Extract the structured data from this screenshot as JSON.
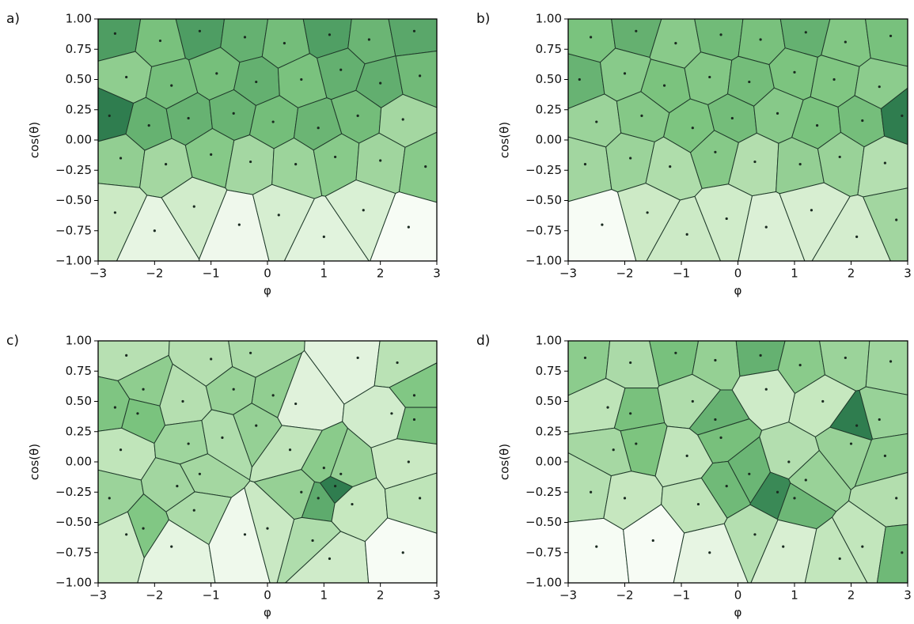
{
  "chart_data": [
    {
      "type": "voronoi",
      "panel_label": "a)",
      "xlabel": "φ",
      "ylabel": "cos(θ)",
      "x": [
        -2.7,
        -1.9,
        -1.2,
        -0.4,
        0.3,
        1.1,
        1.8,
        2.6,
        -2.5,
        -1.7,
        -0.9,
        -0.2,
        0.6,
        1.3,
        2.0,
        2.7,
        -2.8,
        -2.1,
        -1.4,
        -0.6,
        0.1,
        0.9,
        1.6,
        2.4,
        -2.6,
        -1.8,
        -1.0,
        -0.3,
        0.5,
        1.2,
        2.0,
        2.8,
        -2.7,
        -2.0,
        -1.3,
        -0.5,
        0.2,
        1.0,
        1.7,
        2.5
      ],
      "y": [
        0.88,
        0.82,
        0.9,
        0.85,
        0.8,
        0.87,
        0.83,
        0.9,
        0.52,
        0.45,
        0.55,
        0.48,
        0.5,
        0.58,
        0.47,
        0.53,
        0.2,
        0.12,
        0.18,
        0.22,
        0.15,
        0.1,
        0.2,
        0.17,
        -0.15,
        -0.2,
        -0.12,
        -0.18,
        -0.2,
        -0.14,
        -0.17,
        -0.22,
        -0.6,
        -0.75,
        -0.55,
        -0.7,
        -0.62,
        -0.8,
        -0.58,
        -0.72
      ],
      "xlim": [
        -3,
        3
      ],
      "ylim": [
        -1,
        1
      ],
      "xticks": [
        {
          "value": -3,
          "label": "−3"
        },
        {
          "value": -2,
          "label": "−2"
        },
        {
          "value": -1,
          "label": "−1"
        },
        0,
        1,
        2,
        3
      ],
      "yticks": [
        {
          "value": 1,
          "label": "1.00"
        },
        {
          "value": 0.75,
          "label": "0.75"
        },
        {
          "value": 0.5,
          "label": "0.50"
        },
        {
          "value": 0.25,
          "label": "0.25"
        },
        {
          "value": 0,
          "label": "0.00"
        },
        {
          "value": -0.25,
          "label": "−0.25"
        },
        {
          "value": -0.5,
          "label": "−0.50"
        },
        {
          "value": -0.75,
          "label": "−0.75"
        },
        {
          "value": -1,
          "label": "−1.00"
        }
      ],
      "cmap": [
        "#2f7d4f",
        "#4f9e63",
        "#7cc47f",
        "#c7e8c0",
        "#f7fcf5"
      ]
    },
    {
      "type": "voronoi",
      "panel_label": "b)",
      "xlabel": "φ",
      "ylabel": "cos(θ)",
      "x": [
        -2.6,
        -1.8,
        -1.1,
        -0.3,
        0.4,
        1.2,
        1.9,
        2.7,
        -2.8,
        -2.0,
        -1.3,
        -0.5,
        0.2,
        1.0,
        1.7,
        2.5,
        -2.5,
        -1.7,
        -0.8,
        -0.1,
        0.7,
        1.4,
        2.2,
        2.9,
        -2.7,
        -1.9,
        -1.2,
        -0.4,
        0.3,
        1.1,
        1.8,
        2.6,
        -2.4,
        -1.6,
        -0.9,
        -0.2,
        0.5,
        1.3,
        2.1,
        2.8
      ],
      "y": [
        0.85,
        0.9,
        0.8,
        0.87,
        0.83,
        0.89,
        0.81,
        0.86,
        0.5,
        0.55,
        0.45,
        0.52,
        0.48,
        0.56,
        0.5,
        0.44,
        0.15,
        0.2,
        0.1,
        0.18,
        0.22,
        0.12,
        0.16,
        0.2,
        -0.2,
        -0.15,
        -0.22,
        -0.1,
        -0.18,
        -0.2,
        -0.14,
        -0.19,
        -0.7,
        -0.6,
        -0.78,
        -0.65,
        -0.72,
        -0.58,
        -0.8,
        -0.66
      ],
      "xlim": [
        -3,
        3
      ],
      "ylim": [
        -1,
        1
      ],
      "xticks": [
        {
          "value": -3,
          "label": "−3"
        },
        {
          "value": -2,
          "label": "−2"
        },
        {
          "value": -1,
          "label": "−1"
        },
        0,
        1,
        2,
        3
      ],
      "yticks": [
        {
          "value": 1,
          "label": "1.00"
        },
        {
          "value": 0.75,
          "label": "0.75"
        },
        {
          "value": 0.5,
          "label": "0.50"
        },
        {
          "value": 0.25,
          "label": "0.25"
        },
        {
          "value": 0,
          "label": "0.00"
        },
        {
          "value": -0.25,
          "label": "−0.25"
        },
        {
          "value": -0.5,
          "label": "−0.50"
        },
        {
          "value": -0.75,
          "label": "−0.75"
        },
        {
          "value": -1,
          "label": "−1.00"
        }
      ],
      "cmap": [
        "#2f7d4f",
        "#4f9e63",
        "#7cc47f",
        "#c7e8c0",
        "#f7fcf5"
      ]
    },
    {
      "type": "voronoi",
      "panel_label": "c)",
      "xlabel": "φ",
      "ylabel": "cos(θ)",
      "x": [
        -2.5,
        -2.2,
        -1.0,
        -0.3,
        0.1,
        1.6,
        2.3,
        2.6,
        -2.7,
        -2.3,
        -1.5,
        -0.6,
        -0.2,
        0.5,
        2.2,
        2.6,
        -2.6,
        -1.4,
        -1.2,
        -0.8,
        0.4,
        1.0,
        1.3,
        2.5,
        -2.8,
        -1.6,
        -1.3,
        0.6,
        0.9,
        1.2,
        1.5,
        2.7,
        -2.5,
        -2.2,
        -1.7,
        -0.4,
        0.0,
        0.8,
        1.1,
        2.4
      ],
      "y": [
        0.88,
        0.6,
        0.85,
        0.9,
        0.55,
        0.86,
        0.82,
        0.55,
        0.45,
        0.4,
        0.5,
        0.6,
        0.3,
        0.48,
        0.4,
        0.35,
        0.1,
        0.15,
        -0.1,
        0.2,
        0.1,
        -0.05,
        -0.1,
        0.0,
        -0.3,
        -0.2,
        -0.4,
        -0.25,
        -0.3,
        -0.2,
        -0.35,
        -0.3,
        -0.6,
        -0.55,
        -0.7,
        -0.6,
        -0.55,
        -0.65,
        -0.8,
        -0.75
      ],
      "xlim": [
        -3,
        3
      ],
      "ylim": [
        -1,
        1
      ],
      "xticks": [
        {
          "value": -3,
          "label": "−3"
        },
        {
          "value": -2,
          "label": "−2"
        },
        {
          "value": -1,
          "label": "−1"
        },
        0,
        1,
        2,
        3
      ],
      "yticks": [
        {
          "value": 1,
          "label": "1.00"
        },
        {
          "value": 0.75,
          "label": "0.75"
        },
        {
          "value": 0.5,
          "label": "0.50"
        },
        {
          "value": 0.25,
          "label": "0.25"
        },
        {
          "value": 0,
          "label": "0.00"
        },
        {
          "value": -0.25,
          "label": "−0.25"
        },
        {
          "value": -0.5,
          "label": "−0.50"
        },
        {
          "value": -0.75,
          "label": "−0.75"
        },
        {
          "value": -1,
          "label": "−1.00"
        }
      ],
      "cmap": [
        "#2f7d4f",
        "#4f9e63",
        "#7cc47f",
        "#c7e8c0",
        "#f7fcf5"
      ]
    },
    {
      "type": "voronoi",
      "panel_label": "d)",
      "xlabel": "φ",
      "ylabel": "cos(θ)",
      "x": [
        -2.7,
        -1.9,
        -1.1,
        -0.4,
        0.4,
        1.1,
        1.9,
        2.7,
        -2.3,
        -1.9,
        -0.8,
        -0.4,
        0.5,
        1.5,
        2.1,
        2.5,
        -2.2,
        -1.8,
        -0.9,
        -0.3,
        0.2,
        0.9,
        2.0,
        2.6,
        -2.6,
        -2.0,
        -0.7,
        -0.2,
        0.7,
        1.0,
        1.2,
        2.8,
        -2.5,
        -1.5,
        -0.5,
        0.3,
        0.8,
        1.8,
        2.2,
        2.9
      ],
      "y": [
        0.86,
        0.82,
        0.9,
        0.84,
        0.88,
        0.8,
        0.86,
        0.83,
        0.45,
        0.4,
        0.5,
        0.35,
        0.6,
        0.5,
        0.3,
        0.35,
        0.1,
        0.15,
        0.05,
        0.2,
        -0.1,
        0.0,
        0.15,
        0.05,
        -0.25,
        -0.3,
        -0.35,
        -0.2,
        -0.25,
        -0.3,
        -0.15,
        -0.3,
        -0.7,
        -0.65,
        -0.75,
        -0.6,
        -0.7,
        -0.8,
        -0.7,
        -0.75
      ],
      "xlim": [
        -3,
        3
      ],
      "ylim": [
        -1,
        1
      ],
      "xticks": [
        {
          "value": -3,
          "label": "−3"
        },
        {
          "value": -2,
          "label": "−2"
        },
        {
          "value": -1,
          "label": "−1"
        },
        0,
        1,
        2,
        3
      ],
      "yticks": [
        {
          "value": 1,
          "label": "1.00"
        },
        {
          "value": 0.75,
          "label": "0.75"
        },
        {
          "value": 0.5,
          "label": "0.50"
        },
        {
          "value": 0.25,
          "label": "0.25"
        },
        {
          "value": 0,
          "label": "0.00"
        },
        {
          "value": -0.25,
          "label": "−0.25"
        },
        {
          "value": -0.5,
          "label": "−0.50"
        },
        {
          "value": -0.75,
          "label": "−0.75"
        },
        {
          "value": -1,
          "label": "−1.00"
        }
      ],
      "cmap": [
        "#2f7d4f",
        "#4f9e63",
        "#7cc47f",
        "#c7e8c0",
        "#f7fcf5"
      ]
    }
  ]
}
